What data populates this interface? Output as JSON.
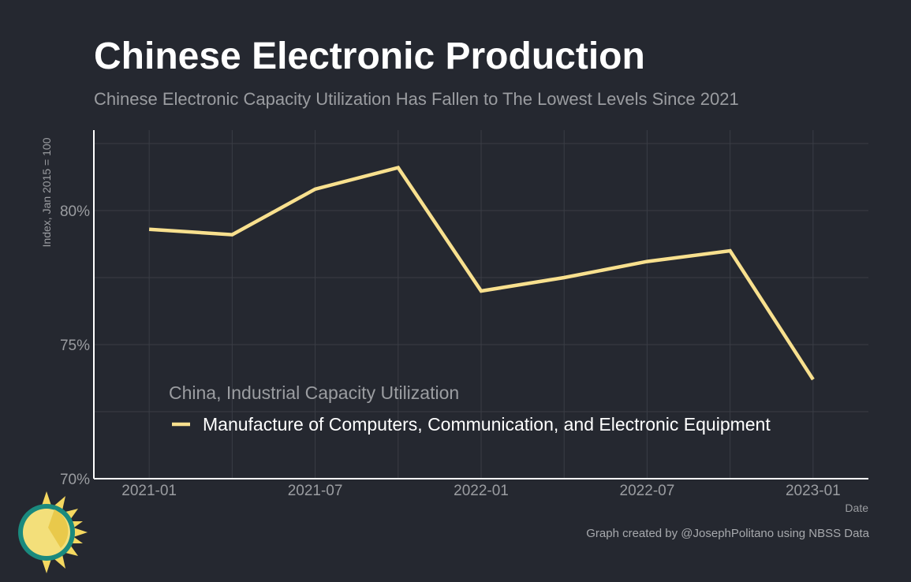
{
  "title": "Chinese Electronic Production",
  "subtitle": "Chinese Electronic Capacity Utilization Has Fallen to The Lowest Levels Since 2021",
  "caption": "Graph created by @JosephPolitano using NBSS Data",
  "colors": {
    "background": "#252830",
    "line": "#f8e08e",
    "grid": "#3a3d45",
    "axis": "#ffffff",
    "text_muted": "#9b9da1"
  },
  "chart_data": {
    "type": "line",
    "title": "Chinese Electronic Production",
    "subtitle": "Chinese Electronic Capacity Utilization Has Fallen to The Lowest Levels Since 2021",
    "xlabel": "Date",
    "ylabel": "Index, Jan 2015 = 100",
    "x_ticks": [
      "2021-01",
      "2021-07",
      "2022-01",
      "2022-07",
      "2023-01"
    ],
    "y_ticks": [
      70,
      75,
      80
    ],
    "y_tick_labels": [
      "70%",
      "75%",
      "80%"
    ],
    "ylim": [
      70,
      83
    ],
    "xlim": [
      "2020-11",
      "2023-03"
    ],
    "grid": true,
    "legend_title": "China, Industrial Capacity Utilization",
    "legend_placement": "bottom-left",
    "series": [
      {
        "name": "Manufacture of Computers, Communication, and Electronic Equipment",
        "color": "#f8e08e",
        "x": [
          "2021-01",
          "2021-04",
          "2021-07",
          "2021-10",
          "2022-01",
          "2022-04",
          "2022-07",
          "2022-10",
          "2023-01"
        ],
        "values": [
          79.3,
          79.1,
          80.8,
          81.6,
          77.0,
          77.5,
          78.1,
          78.5,
          73.7
        ]
      }
    ]
  }
}
